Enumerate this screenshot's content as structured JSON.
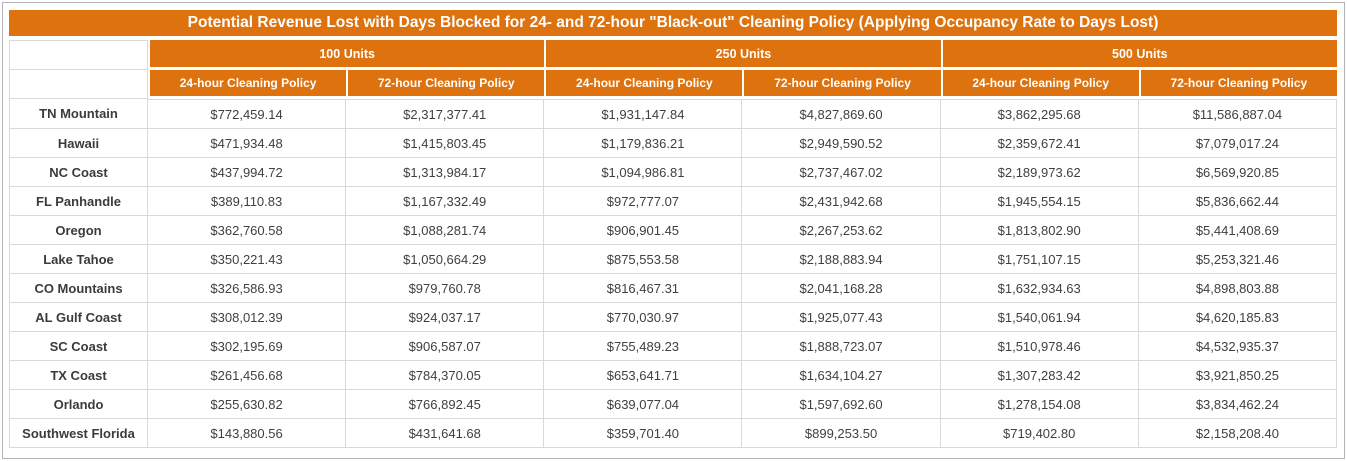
{
  "title": "Potential Revenue Lost with Days Blocked for 24- and 72-hour \"Black-out\" Cleaning Policy (Applying Occupancy Rate to Days Lost)",
  "colors": {
    "accent_orange": "#dd720e",
    "header_text": "#ffffff",
    "cell_border": "#d9d9d9",
    "data_text": "#404040",
    "outer_border": "#b4b4b4"
  },
  "chart_data": {
    "type": "table",
    "title": "Potential Revenue Lost with Days Blocked for 24- and 72-hour \"Black-out\" Cleaning Policy (Applying Occupancy Rate to Days Lost)",
    "column_groups": [
      "100 Units",
      "250 Units",
      "500 Units"
    ],
    "sub_columns": [
      "24-hour Cleaning Policy",
      "72-hour Cleaning Policy"
    ],
    "rows": [
      {
        "label": "TN Mountain",
        "values": [
          "$772,459.14",
          "$2,317,377.41",
          "$1,931,147.84",
          "$4,827,869.60",
          "$3,862,295.68",
          "$11,586,887.04"
        ]
      },
      {
        "label": "Hawaii",
        "values": [
          "$471,934.48",
          "$1,415,803.45",
          "$1,179,836.21",
          "$2,949,590.52",
          "$2,359,672.41",
          "$7,079,017.24"
        ]
      },
      {
        "label": "NC Coast",
        "values": [
          "$437,994.72",
          "$1,313,984.17",
          "$1,094,986.81",
          "$2,737,467.02",
          "$2,189,973.62",
          "$6,569,920.85"
        ]
      },
      {
        "label": "FL Panhandle",
        "values": [
          "$389,110.83",
          "$1,167,332.49",
          "$972,777.07",
          "$2,431,942.68",
          "$1,945,554.15",
          "$5,836,662.44"
        ]
      },
      {
        "label": "Oregon",
        "values": [
          "$362,760.58",
          "$1,088,281.74",
          "$906,901.45",
          "$2,267,253.62",
          "$1,813,802.90",
          "$5,441,408.69"
        ]
      },
      {
        "label": "Lake Tahoe",
        "values": [
          "$350,221.43",
          "$1,050,664.29",
          "$875,553.58",
          "$2,188,883.94",
          "$1,751,107.15",
          "$5,253,321.46"
        ]
      },
      {
        "label": "CO Mountains",
        "values": [
          "$326,586.93",
          "$979,760.78",
          "$816,467.31",
          "$2,041,168.28",
          "$1,632,934.63",
          "$4,898,803.88"
        ]
      },
      {
        "label": "AL Gulf Coast",
        "values": [
          "$308,012.39",
          "$924,037.17",
          "$770,030.97",
          "$1,925,077.43",
          "$1,540,061.94",
          "$4,620,185.83"
        ]
      },
      {
        "label": "SC Coast",
        "values": [
          "$302,195.69",
          "$906,587.07",
          "$755,489.23",
          "$1,888,723.07",
          "$1,510,978.46",
          "$4,532,935.37"
        ]
      },
      {
        "label": "TX Coast",
        "values": [
          "$261,456.68",
          "$784,370.05",
          "$653,641.71",
          "$1,634,104.27",
          "$1,307,283.42",
          "$3,921,850.25"
        ]
      },
      {
        "label": "Orlando",
        "values": [
          "$255,630.82",
          "$766,892.45",
          "$639,077.04",
          "$1,597,692.60",
          "$1,278,154.08",
          "$3,834,462.24"
        ]
      },
      {
        "label": "Southwest Florida",
        "values": [
          "$143,880.56",
          "$431,641.68",
          "$359,701.40",
          "$899,253.50",
          "$719,402.80",
          "$2,158,208.40"
        ]
      }
    ]
  }
}
